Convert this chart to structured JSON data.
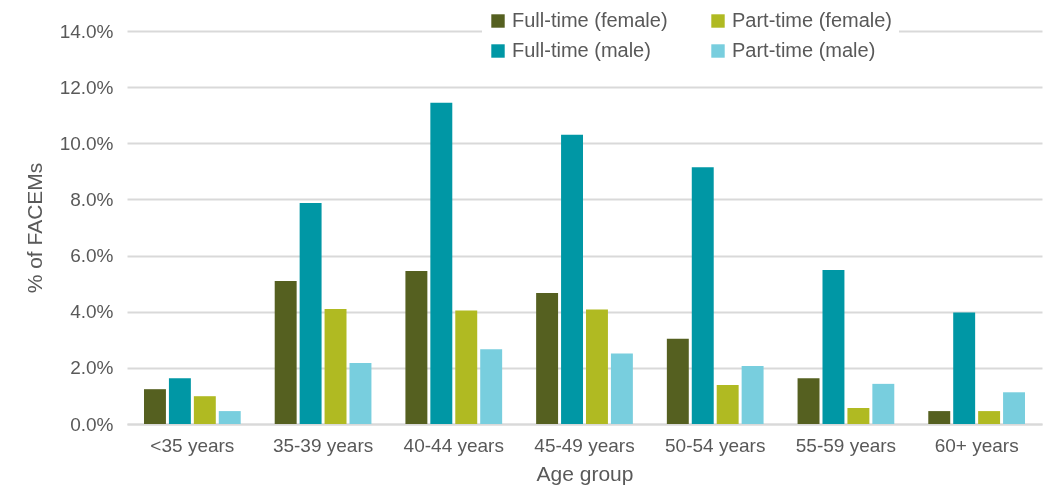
{
  "chart_data": {
    "type": "bar",
    "xlabel": "Age group",
    "ylabel": "% of FACEMs",
    "categories": [
      "<35 years",
      "35-39 years",
      "40-44 years",
      "45-49 years",
      "50-54 years",
      "55-59 years",
      "60+ years"
    ],
    "series": [
      {
        "name": "Full-time (female)",
        "color": "#556020",
        "values": [
          1.24,
          5.09,
          5.45,
          4.67,
          3.04,
          1.63,
          0.46
        ]
      },
      {
        "name": "Full-time (male)",
        "color": "#0097a5",
        "values": [
          1.63,
          7.87,
          11.44,
          10.3,
          9.15,
          5.49,
          3.97
        ]
      },
      {
        "name": "Part-time (female)",
        "color": "#b0ba22",
        "values": [
          0.99,
          4.1,
          4.04,
          4.08,
          1.39,
          0.57,
          0.46
        ]
      },
      {
        "name": "Part-time (male)",
        "color": "#78cede",
        "values": [
          0.46,
          2.17,
          2.66,
          2.51,
          2.07,
          1.43,
          1.13
        ]
      }
    ],
    "ylim": [
      0,
      14
    ],
    "yticks": [
      {
        "value": 0,
        "label": "0.0%"
      },
      {
        "value": 2,
        "label": "2.0%"
      },
      {
        "value": 4,
        "label": "4.0%"
      },
      {
        "value": 6,
        "label": "6.0%"
      },
      {
        "value": 8,
        "label": "8.0%"
      },
      {
        "value": 10,
        "label": "10.0%"
      },
      {
        "value": 12,
        "label": "12.0%"
      },
      {
        "value": 14,
        "label": "14.0%"
      }
    ],
    "grid": "y",
    "legend": "top right"
  }
}
